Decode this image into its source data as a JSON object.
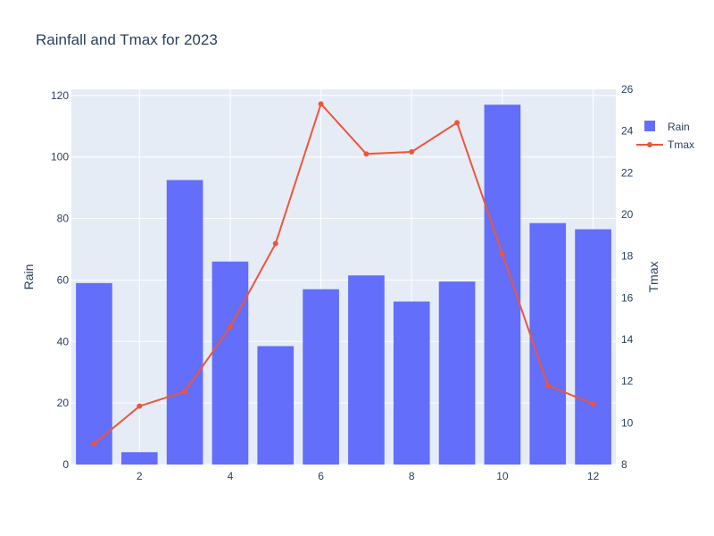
{
  "chart_data": {
    "type": "bar+line",
    "title": "Rainfall and Tmax for 2023",
    "x": [
      1,
      2,
      3,
      4,
      5,
      6,
      7,
      8,
      9,
      10,
      11,
      12
    ],
    "x_ticks": [
      2,
      4,
      6,
      8,
      10,
      12
    ],
    "xlim": [
      0.5,
      12.5
    ],
    "series": [
      {
        "name": "Rain",
        "type": "bar",
        "axis": "left",
        "color": "#636efa",
        "values": [
          59,
          4,
          92.5,
          66,
          38.5,
          57,
          61.5,
          53,
          59.5,
          117,
          78.5,
          76.5
        ]
      },
      {
        "name": "Tmax",
        "type": "line",
        "axis": "right",
        "color": "#ef553b",
        "values": [
          9.0,
          10.8,
          11.5,
          14.6,
          18.6,
          25.3,
          22.9,
          23.0,
          24.4,
          18.1,
          11.8,
          10.9
        ]
      }
    ],
    "y_left": {
      "label": "Rain",
      "range": [
        0,
        122
      ],
      "ticks": [
        0,
        20,
        40,
        60,
        80,
        100,
        120
      ]
    },
    "y_right": {
      "label": "Tmax",
      "range": [
        8,
        26
      ],
      "ticks": [
        8,
        10,
        12,
        14,
        16,
        18,
        20,
        22,
        24,
        26
      ]
    },
    "grid": true,
    "legend_position": "top-right",
    "colors": {
      "plot_bg": "#e5ecf6",
      "grid": "#ffffff",
      "text": "#2a3f5f"
    }
  }
}
